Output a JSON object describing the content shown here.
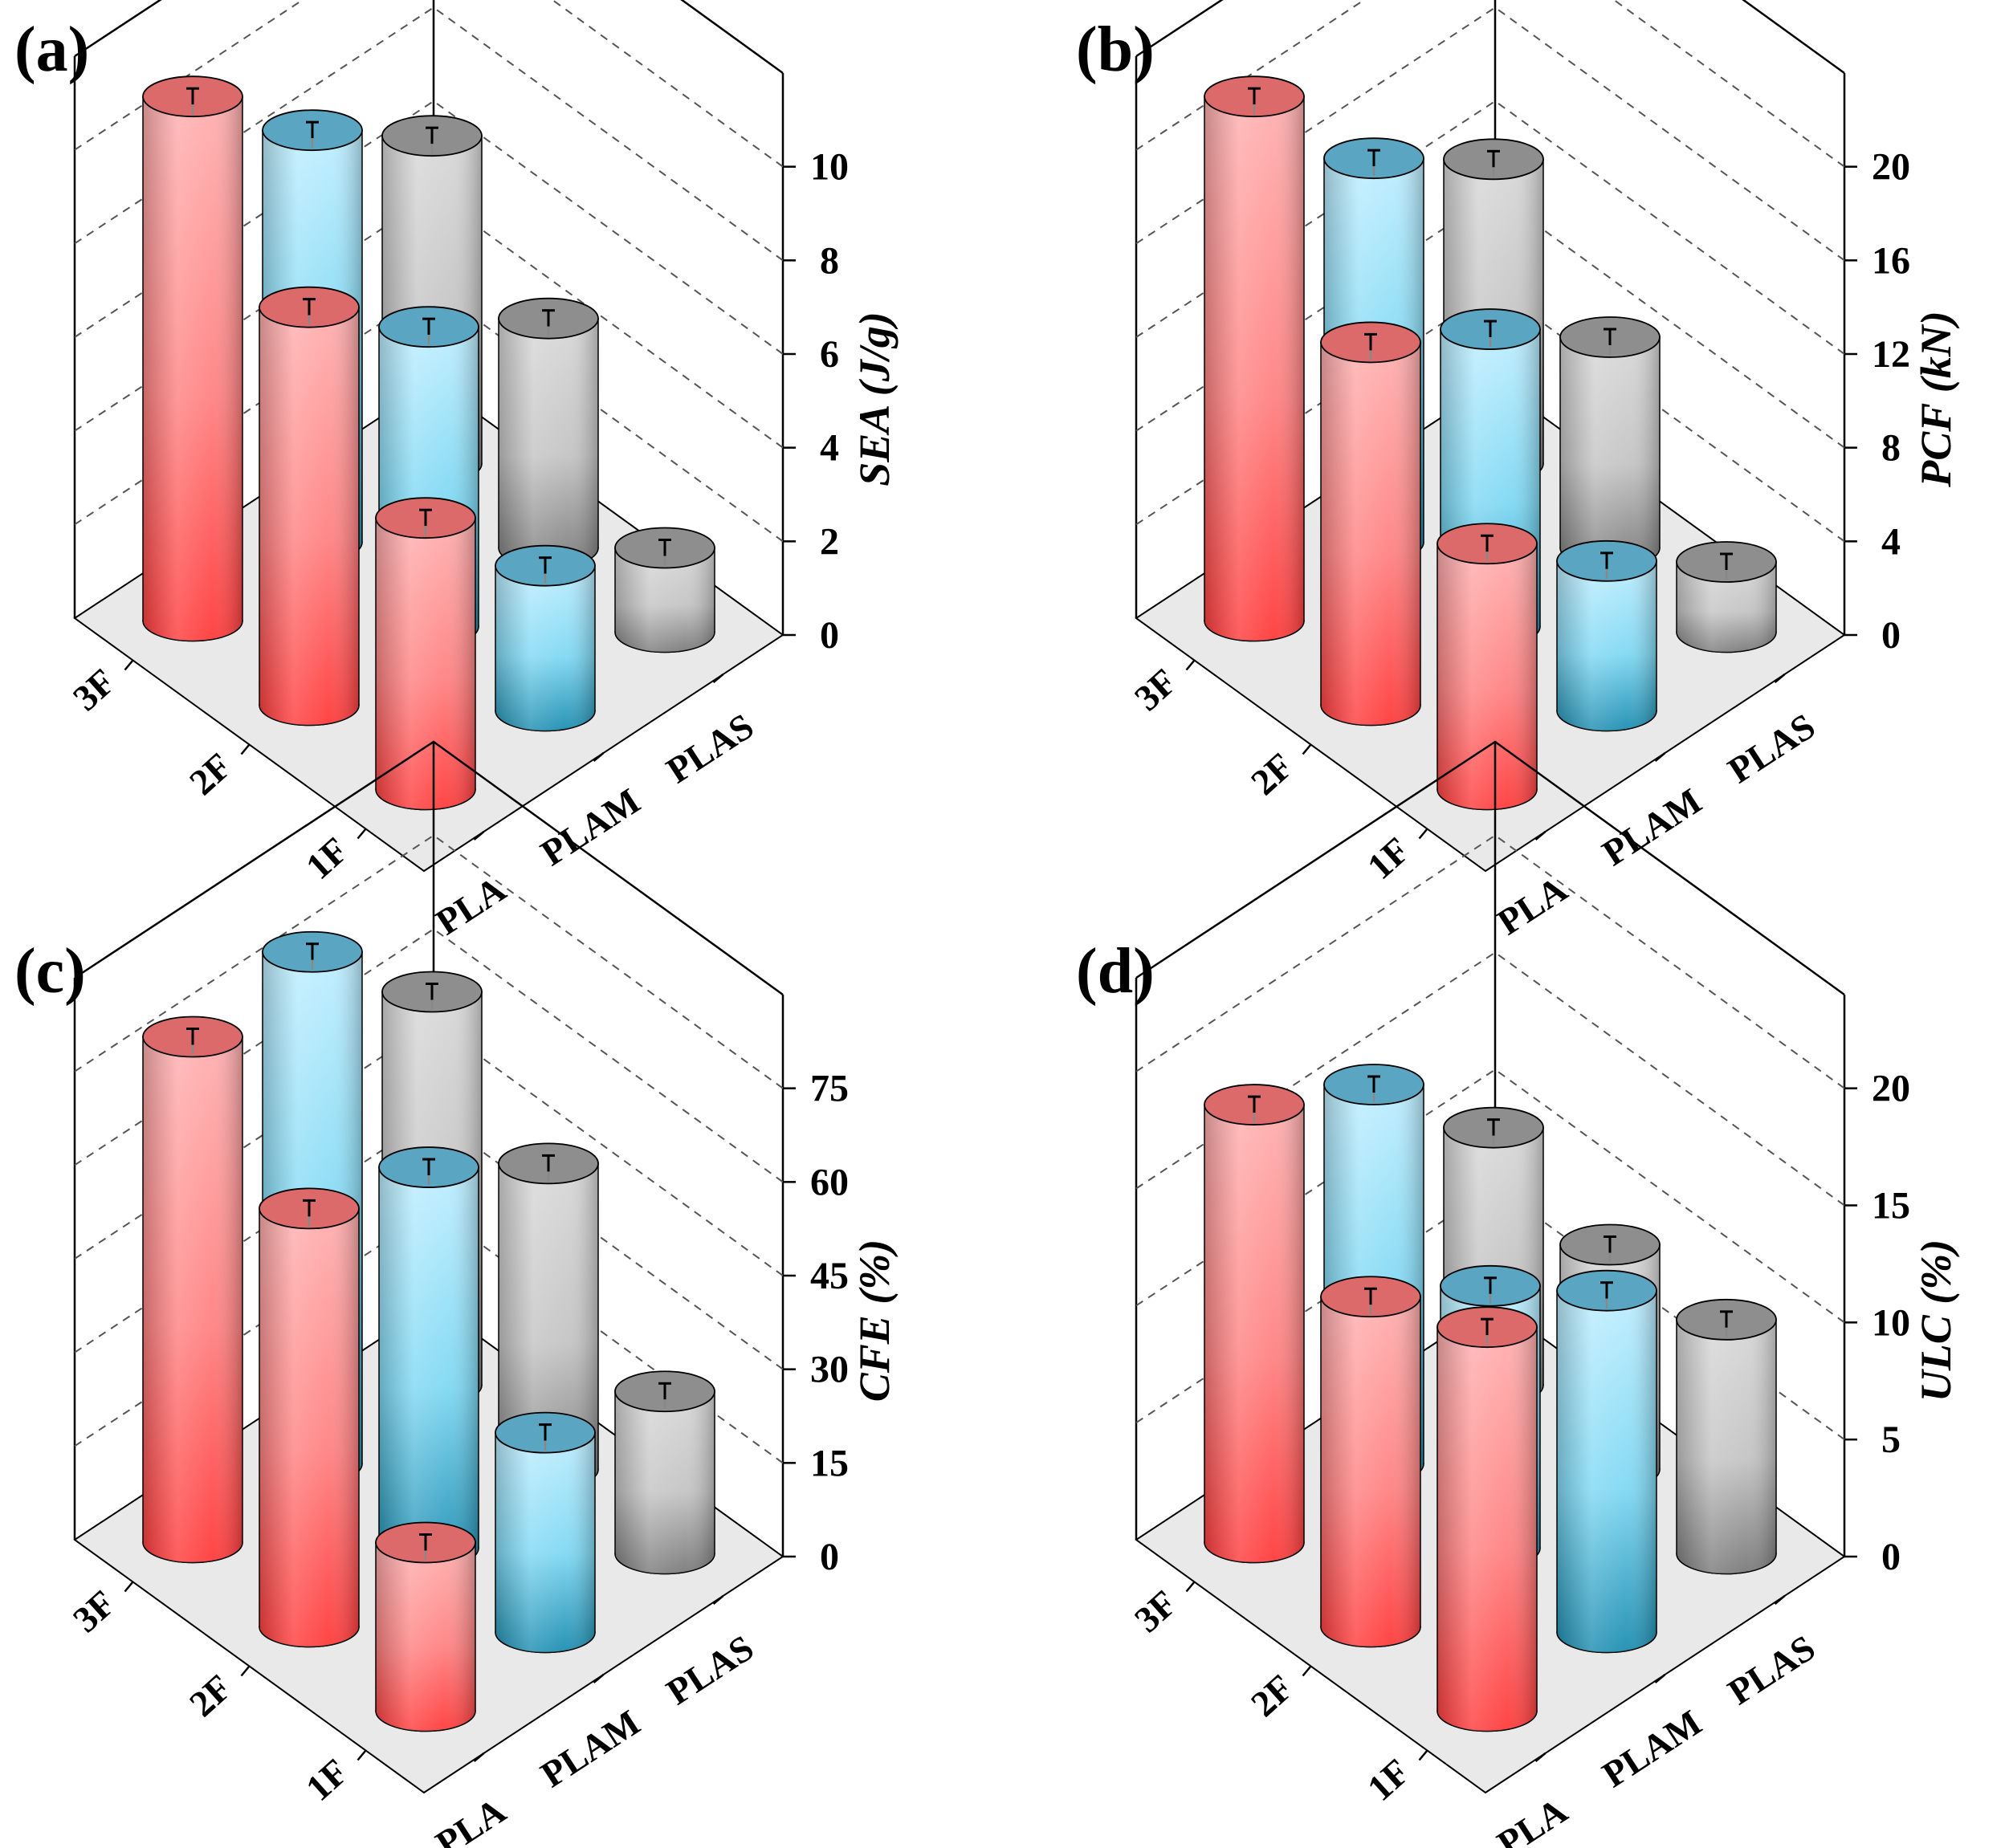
{
  "figure": {
    "materials": [
      "PLA",
      "PLAM",
      "PLAS"
    ],
    "layers": [
      "3F",
      "2F",
      "1F"
    ],
    "colors": {
      "PLA": "#ff3b3b",
      "PLAM": "#2aaed0",
      "PLAS": "#8c8c8c",
      "grid": "#555555",
      "floor": "#e9e9e9"
    }
  },
  "chart_data": [
    {
      "type": "bar3d",
      "panel": "(a)",
      "ylabel": "SEA (J/g)",
      "ylim": [
        0,
        12
      ],
      "yticks": [
        "0",
        "2",
        "4",
        "6",
        "8",
        "10"
      ],
      "materials": [
        "PLA",
        "PLAM",
        "PLAS"
      ],
      "layers": [
        "3F",
        "2F",
        "1F"
      ],
      "series": [
        {
          "name": "PLA",
          "values": [
            11.2,
            8.5,
            5.8
          ]
        },
        {
          "name": "PLAM",
          "values": [
            8.8,
            6.4,
            3.1
          ]
        },
        {
          "name": "PLAS",
          "values": [
            7.0,
            4.9,
            1.8
          ]
        }
      ]
    },
    {
      "type": "bar3d",
      "panel": "(b)",
      "ylabel": "PCF (kN)",
      "ylim": [
        0,
        24
      ],
      "yticks": [
        "0",
        "4",
        "8",
        "12",
        "16",
        "20"
      ],
      "materials": [
        "PLA",
        "PLAM",
        "PLAS"
      ],
      "layers": [
        "3F",
        "2F",
        "1F"
      ],
      "series": [
        {
          "name": "PLA",
          "values": [
            22.4,
            15.5,
            10.5
          ]
        },
        {
          "name": "PLAM",
          "values": [
            16.4,
            12.7,
            6.4
          ]
        },
        {
          "name": "PLAS",
          "values": [
            13.0,
            9.0,
            3.0
          ]
        }
      ]
    },
    {
      "type": "bar3d",
      "panel": "(c)",
      "ylabel": "CFE (%)",
      "ylim": [
        0,
        90
      ],
      "yticks": [
        "0",
        "15",
        "30",
        "45",
        "60",
        "75"
      ],
      "materials": [
        "PLA",
        "PLAM",
        "PLAS"
      ],
      "layers": [
        "3F",
        "2F",
        "1F"
      ],
      "series": [
        {
          "name": "PLA",
          "values": [
            81,
            67,
            27
          ]
        },
        {
          "name": "PLAM",
          "values": [
            82,
            61,
            32
          ]
        },
        {
          "name": "PLAS",
          "values": [
            63,
            49,
            26
          ]
        }
      ]
    },
    {
      "type": "bar3d",
      "panel": "(d)",
      "ylabel": "ULC (%)",
      "ylim": [
        0,
        24
      ],
      "yticks": [
        "0",
        "5",
        "10",
        "15",
        "20"
      ],
      "materials": [
        "PLA",
        "PLAM",
        "PLAS"
      ],
      "layers": [
        "3F",
        "2F",
        "1F"
      ],
      "series": [
        {
          "name": "PLA",
          "values": [
            18.7,
            14.1,
            16.4
          ]
        },
        {
          "name": "PLAM",
          "values": [
            16.2,
            11.2,
            14.6
          ]
        },
        {
          "name": "PLAS",
          "values": [
            11.0,
            9.6,
            10.0
          ]
        }
      ]
    }
  ]
}
